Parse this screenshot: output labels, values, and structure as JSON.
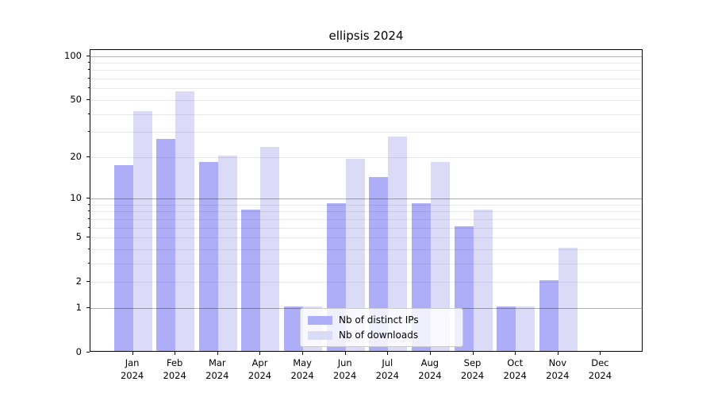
{
  "title": "ellipsis 2024",
  "chart_data": {
    "type": "bar",
    "title": "ellipsis 2024",
    "categories": [
      "Jan",
      "Feb",
      "Mar",
      "Apr",
      "May",
      "Jun",
      "Jul",
      "Aug",
      "Sep",
      "Oct",
      "Nov",
      "Dec"
    ],
    "category_year": "2024",
    "series": [
      {
        "name": "Nb of distinct IPs",
        "color": "#adadf8",
        "values": [
          17,
          26,
          18,
          8,
          1,
          9,
          14,
          9,
          6,
          1,
          2,
          0
        ]
      },
      {
        "name": "Nb of downloads",
        "color": "#dbdbf8",
        "values": [
          41,
          56,
          20,
          23,
          1,
          19,
          27,
          18,
          8,
          1,
          4,
          0
        ]
      }
    ],
    "yscale": "log1p",
    "ylim": [
      0,
      110
    ],
    "ytick_values": [
      0,
      1,
      2,
      5,
      10,
      20,
      50,
      100
    ],
    "ytick_labels": [
      "0",
      "1",
      "2",
      "5",
      "10",
      "20",
      "50",
      "100"
    ],
    "major_grid_values": [
      1,
      10,
      100
    ],
    "minor_grid_values": [
      2,
      3,
      4,
      5,
      6,
      7,
      8,
      9,
      20,
      30,
      40,
      50,
      60,
      70,
      80,
      90
    ],
    "grid": true,
    "legend_position": "lower center"
  },
  "colors": {
    "major_grid": "#b0b0b0",
    "minor_grid": "#e9e9e9",
    "axis": "#000000",
    "text": "#000000",
    "legend_border": "#cccccc"
  }
}
